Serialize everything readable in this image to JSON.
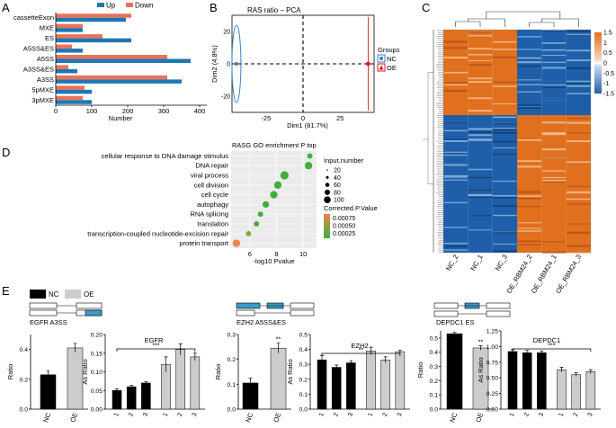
{
  "panels": {
    "A": {
      "letter": "A"
    },
    "B": {
      "letter": "B"
    },
    "C": {
      "letter": "C"
    },
    "D": {
      "letter": "D"
    },
    "E": {
      "letter": "E"
    }
  },
  "colors": {
    "up": "#1f77b4",
    "down": "#e8735a",
    "nc": "#3a7ec0",
    "oe": "#e31a1c",
    "heat_high": "#e0701e",
    "heat_low": "#1f5ea8",
    "go_green": "#3fae3f",
    "go_orange": "#e8874a",
    "bar_black": "#000000",
    "bar_gray": "#cccccc"
  },
  "chart_data": [
    {
      "id": "A",
      "type": "bar",
      "orientation": "horizontal",
      "categories": [
        "cassetteExon",
        "MXE",
        "ES",
        "A5SS&ES",
        "A5SS",
        "A3SS&ES",
        "A3SS",
        "5pMXE",
        "3pMXE"
      ],
      "series": [
        {
          "name": "Up",
          "values": [
            195,
            75,
            210,
            75,
            375,
            60,
            350,
            100,
            100
          ]
        },
        {
          "name": "Down",
          "values": [
            210,
            75,
            130,
            45,
            310,
            35,
            310,
            80,
            75
          ]
        }
      ],
      "xlabel": "Number",
      "xlim": [
        0,
        420
      ],
      "xticks": [
        "0",
        "100",
        "200",
        "300",
        "400"
      ],
      "legend": "top"
    },
    {
      "id": "B",
      "type": "scatter",
      "title": "RAS ratio – PCA",
      "xlabel": "Dim1 (81.7%)",
      "ylabel": "Dim2 (4.8%)",
      "xticks": [
        "-25",
        "0",
        "25"
      ],
      "yticks": [
        "-20",
        "0",
        "20"
      ],
      "legend_title": "Groups",
      "series": [
        {
          "name": "NC",
          "points": [
            [
              -45,
              0
            ]
          ]
        },
        {
          "name": "OE",
          "points": [
            [
              44,
              0
            ]
          ]
        }
      ],
      "legend": "right"
    },
    {
      "id": "C",
      "type": "heatmap",
      "columns": [
        "NC_2",
        "NC_1",
        "NC_3",
        "OE_RBM24_2",
        "OE_RBM24_1",
        "OE_RBM24_3"
      ],
      "colorbar_ticks": [
        "1.5",
        "1",
        "0.5",
        "0",
        "-0.5",
        "-1",
        "-1.5"
      ],
      "clusters": [
        {
          "rows": "top",
          "nc": "high",
          "oe": "low"
        },
        {
          "rows": "bottom",
          "nc": "low",
          "oe": "high"
        }
      ]
    },
    {
      "id": "D",
      "type": "scatter",
      "title": "RASG GO enrichment P top",
      "xlabel": "-log10 Pvalue",
      "xticks": [
        "6",
        "8",
        "10"
      ],
      "categories": [
        "cellular response to DNA damage stimulus",
        "DNA repair",
        "viral process",
        "cell division",
        "cell cycle",
        "autophagy",
        "RNA splicing",
        "translation",
        "transcription-coupled nucleotide-excision repair",
        "protein transport"
      ],
      "x": [
        10.5,
        10.4,
        8.6,
        8.1,
        7.8,
        7.2,
        6.8,
        6.5,
        5.9,
        5.0
      ],
      "size": [
        20,
        60,
        80,
        60,
        60,
        40,
        20,
        20,
        20,
        60
      ],
      "color": [
        0.0002,
        0.0002,
        0.0002,
        0.0002,
        0.0002,
        0.0003,
        0.0003,
        0.0003,
        0.0004,
        0.0008
      ],
      "size_legend_title": "Input.number",
      "size_legend": [
        "20",
        "40",
        "60",
        "80",
        "100"
      ],
      "color_legend_title": "Corrected.P.Value",
      "color_legend": [
        "0.00075",
        "0.00050",
        "0.00025"
      ]
    },
    {
      "id": "E",
      "type": "bar",
      "legend": [
        {
          "name": "NC"
        },
        {
          "name": "OE"
        }
      ],
      "groups": [
        {
          "event": "EGFR A3SS",
          "gene": "EGFR",
          "ratio": {
            "categories": [
              "NC",
              "OE"
            ],
            "values": [
              0.23,
              0.41
            ],
            "err": [
              0.025,
              0.03
            ],
            "ylim": [
              0,
              0.5
            ],
            "yticks": [
              "0.0",
              "0.2",
              "0.4"
            ],
            "ylabel": "Ratio",
            "sig": ""
          },
          "as_ratio": {
            "categories": [
              "1",
              "2",
              "3",
              "1",
              "2",
              "3"
            ],
            "values": [
              0.05,
              0.06,
              0.07,
              0.12,
              0.16,
              0.14
            ],
            "err": [
              0.004,
              0.004,
              0.004,
              0.02,
              0.015,
              0.01
            ],
            "ylim": [
              0,
              0.2
            ],
            "yticks": [
              "0.00",
              "0.05",
              "0.10",
              "0.15",
              "0.20"
            ],
            "ylabel": "As Ratio",
            "sig": "***"
          }
        },
        {
          "event": "EZH2 A5SS&ES",
          "gene": "EZH2",
          "ratio": {
            "categories": [
              "NC",
              "OE"
            ],
            "values": [
              0.105,
              0.245
            ],
            "err": [
              0.02,
              0.02
            ],
            "ylim": [
              0,
              0.3
            ],
            "yticks": [
              "0.0",
              "0.1",
              "0.2",
              "0.3"
            ],
            "ylabel": "Ratio",
            "sig": "**"
          },
          "as_ratio": {
            "categories": [
              "1",
              "2",
              "3",
              "1",
              "2",
              "3"
            ],
            "values": [
              0.33,
              0.28,
              0.31,
              0.39,
              0.33,
              0.385
            ],
            "err": [
              0.03,
              0.015,
              0.015,
              0.025,
              0.02,
              0.01
            ],
            "ylim": [
              0,
              0.5
            ],
            "yticks": [
              "0.0",
              "0.1",
              "0.2",
              "0.3",
              "0.4",
              "0.5"
            ],
            "ylabel": "As Ratio",
            "sig": "**"
          }
        },
        {
          "event": "DEPDC1 ES",
          "gene": "DEPDC1",
          "ratio": {
            "categories": [
              "NC",
              "OE"
            ],
            "values": [
              0.53,
              0.43
            ],
            "err": [
              0.01,
              0.015
            ],
            "ylim": [
              0,
              0.55
            ],
            "yticks": [
              "0.0",
              "0.1",
              "0.2",
              "0.3",
              "0.4",
              "0.5"
            ],
            "ylabel": "Ratio",
            "sig": "**"
          },
          "as_ratio": {
            "categories": [
              "1",
              "2",
              "3",
              "1",
              "2",
              "3"
            ],
            "values": [
              0.92,
              0.9,
              0.9,
              0.63,
              0.55,
              0.6
            ],
            "err": [
              0.03,
              0.04,
              0.03,
              0.04,
              0.03,
              0.03
            ],
            "ylim": [
              0,
              1.25
            ],
            "yticks": [
              "0.00",
              "0.25",
              "0.50",
              "0.75",
              "1.00",
              "1.25"
            ],
            "ylabel": "As Ratio",
            "sig": "***"
          }
        }
      ]
    }
  ]
}
